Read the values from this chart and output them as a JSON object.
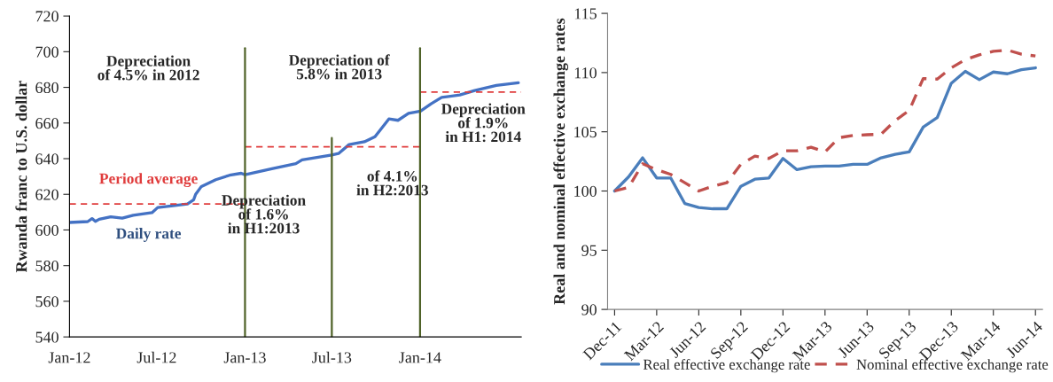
{
  "chart_data": [
    {
      "type": "line",
      "ylabel": "Rwanda franc to U.S. dollar",
      "ylim": [
        540,
        720
      ],
      "yticks": [
        540,
        560,
        580,
        600,
        620,
        640,
        660,
        680,
        700,
        720
      ],
      "xlim": [
        "2012-01-01",
        "2014-07-31"
      ],
      "xticks": [
        {
          "value": "2012-01-01",
          "label": "Jan-12"
        },
        {
          "value": "2012-07-01",
          "label": "Jul-12"
        },
        {
          "value": "2013-01-01",
          "label": "Jan-13"
        },
        {
          "value": "2013-07-01",
          "label": "Jul-13"
        },
        {
          "value": "2014-01-01",
          "label": "Jan-14"
        }
      ],
      "grid": false,
      "legend": false,
      "series": [
        {
          "name": "Daily rate",
          "color": "#4472c4",
          "line_style": "solid",
          "x": [
            "2012-01-01",
            "2012-02-08",
            "2012-02-17",
            "2012-02-24",
            "2012-03-03",
            "2012-03-27",
            "2012-04-20",
            "2012-05-13",
            "2012-06-21",
            "2012-07-03",
            "2012-08-04",
            "2012-09-03",
            "2012-09-16",
            "2012-09-20",
            "2012-10-02",
            "2012-11-01",
            "2012-11-30",
            "2012-12-24",
            "2013-01-01",
            "2013-02-26",
            "2013-04-17",
            "2013-04-30",
            "2013-07-01",
            "2013-07-15",
            "2013-08-06",
            "2013-09-07",
            "2013-09-29",
            "2013-10-28",
            "2013-11-16",
            "2013-12-08",
            "2014-01-02",
            "2014-01-24",
            "2014-02-15",
            "2014-03-25",
            "2014-04-25",
            "2014-06-09",
            "2014-07-25"
          ],
          "values": [
            604.2,
            604.7,
            606.4,
            604.8,
            606.0,
            607.4,
            606.6,
            608.2,
            609.7,
            612.6,
            613.6,
            614.6,
            617.0,
            620.0,
            624.4,
            628.2,
            630.7,
            631.8,
            631.0,
            634.3,
            637.2,
            639.3,
            642.1,
            642.9,
            647.9,
            649.5,
            652.3,
            662.3,
            661.5,
            665.4,
            666.7,
            670.8,
            674.4,
            675.7,
            678.2,
            681.1,
            682.6
          ]
        },
        {
          "name": "Period average",
          "color": "#e03c3c",
          "line_style": "dashed",
          "x": [
            "2012-01-01",
            "2013-01-01",
            "2013-01-01",
            "2014-01-01",
            "2014-01-01",
            "2014-07-31"
          ],
          "values": [
            614.6,
            614.6,
            646.7,
            646.7,
            677.4,
            677.4
          ]
        }
      ],
      "ref_lines": [
        {
          "axis": "x",
          "value": "2013-01-01",
          "color": "#4f6228"
        },
        {
          "axis": "x",
          "value": "2013-07-01",
          "color": "#4f6228"
        },
        {
          "axis": "x",
          "value": "2014-01-01",
          "color": "#4f6228"
        }
      ],
      "annotations": [
        "Depreciation\nof 4.5% in 2012",
        "Depreciation of\n5.8% in 2013",
        "Depreciation\nof 1.6%\nin H1:2013",
        "of 4.1%\nin H2:2013",
        "Depreciation\nof 1.9%\nin H1: 2014"
      ]
    },
    {
      "type": "line",
      "ylabel": "Real and nominal effective exchange rates",
      "ylim": [
        90,
        115
      ],
      "yticks": [
        90,
        95,
        100,
        105,
        110,
        115
      ],
      "grid": false,
      "legend": "bottom",
      "categories": [
        "Dec-11",
        null,
        null,
        "Mar-12",
        null,
        null,
        "Jun-12",
        null,
        null,
        "Sep-12",
        null,
        null,
        "Dec-12",
        null,
        null,
        "Mar-13",
        null,
        null,
        "Jun-13",
        null,
        null,
        "Sep-13",
        null,
        null,
        "Dec-13",
        null,
        null,
        "Mar-14",
        null,
        null,
        "Jun-14"
      ],
      "series": [
        {
          "name": "Real effective exchange rate",
          "color": "#4a7ebb",
          "line_style": "solid",
          "values": [
            100.0,
            101.2,
            102.8,
            101.1,
            101.1,
            98.95,
            98.6,
            98.5,
            98.5,
            100.4,
            101.0,
            101.1,
            102.75,
            101.8,
            102.05,
            102.1,
            102.1,
            102.25,
            102.25,
            102.8,
            103.1,
            103.3,
            105.4,
            106.2,
            109.1,
            110.1,
            109.4,
            110.05,
            109.9,
            110.25,
            110.4
          ]
        },
        {
          "name": "Nominal effective exchange rate",
          "color": "#c0504d",
          "line_style": "dashed",
          "values": [
            100.0,
            100.3,
            102.3,
            101.8,
            101.4,
            100.7,
            100.0,
            100.4,
            100.7,
            102.25,
            102.95,
            102.75,
            103.4,
            103.4,
            103.7,
            103.3,
            104.5,
            104.7,
            104.75,
            104.8,
            105.95,
            106.8,
            109.5,
            109.45,
            110.4,
            111.1,
            111.5,
            111.8,
            111.9,
            111.55,
            111.4
          ]
        }
      ]
    }
  ]
}
